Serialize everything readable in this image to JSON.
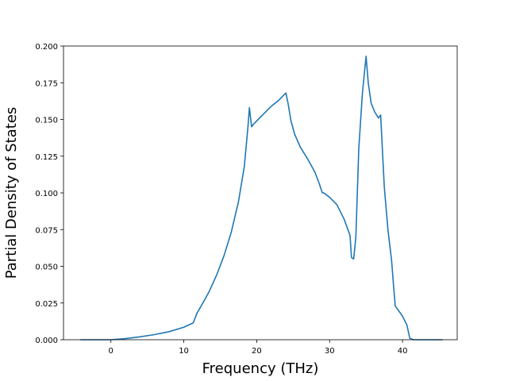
{
  "chart_data": {
    "type": "line",
    "title": "",
    "xlabel": "Frequency (THz)",
    "ylabel": "Partial Density of States",
    "xlim": [
      -6.5,
      47.5
    ],
    "ylim": [
      0,
      0.2
    ],
    "xticks": [
      0,
      10,
      20,
      30,
      40
    ],
    "xtick_labels": [
      "0",
      "10",
      "20",
      "30",
      "40"
    ],
    "yticks": [
      0,
      0.025,
      0.05,
      0.075,
      0.1,
      0.125,
      0.15,
      0.175,
      0.2
    ],
    "ytick_labels": [
      "0.000",
      "0.025",
      "0.050",
      "0.075",
      "0.100",
      "0.125",
      "0.150",
      "0.175",
      "0.200"
    ],
    "grid": false,
    "line_color": "#1f77b4",
    "series": [
      {
        "x": [
          -4.2,
          -2,
          0,
          2,
          4,
          6,
          8,
          10,
          11.3,
          11.8,
          12.5,
          13.5,
          14.5,
          15.5,
          16.5,
          17.5,
          18.3,
          18.8,
          19.0,
          19.3,
          19.6,
          20.2,
          21.0,
          22.0,
          23.0,
          24.0,
          24.3,
          24.7,
          25.2,
          26.0,
          27.0,
          28.0,
          28.6,
          29.0,
          29.2,
          30.0,
          31.0,
          32.0,
          32.8,
          33.0,
          33.3,
          33.6,
          34.0,
          34.5,
          35.0,
          35.3,
          35.7,
          36.2,
          36.7,
          37.0,
          37.5,
          38.0,
          38.5,
          38.8,
          39.0,
          40.0,
          40.6,
          41.0,
          41.5,
          45.5
        ],
        "y": [
          0,
          0,
          0,
          0.0008,
          0.002,
          0.0035,
          0.0055,
          0.0085,
          0.0115,
          0.018,
          0.024,
          0.033,
          0.044,
          0.057,
          0.073,
          0.094,
          0.118,
          0.145,
          0.158,
          0.145,
          0.147,
          0.15,
          0.154,
          0.159,
          0.163,
          0.168,
          0.161,
          0.149,
          0.14,
          0.131,
          0.123,
          0.114,
          0.106,
          0.1,
          0.1,
          0.097,
          0.092,
          0.082,
          0.071,
          0.056,
          0.055,
          0.07,
          0.13,
          0.168,
          0.193,
          0.175,
          0.161,
          0.155,
          0.151,
          0.153,
          0.104,
          0.075,
          0.054,
          0.035,
          0.023,
          0.016,
          0.01,
          0.001,
          0,
          0
        ]
      }
    ]
  }
}
